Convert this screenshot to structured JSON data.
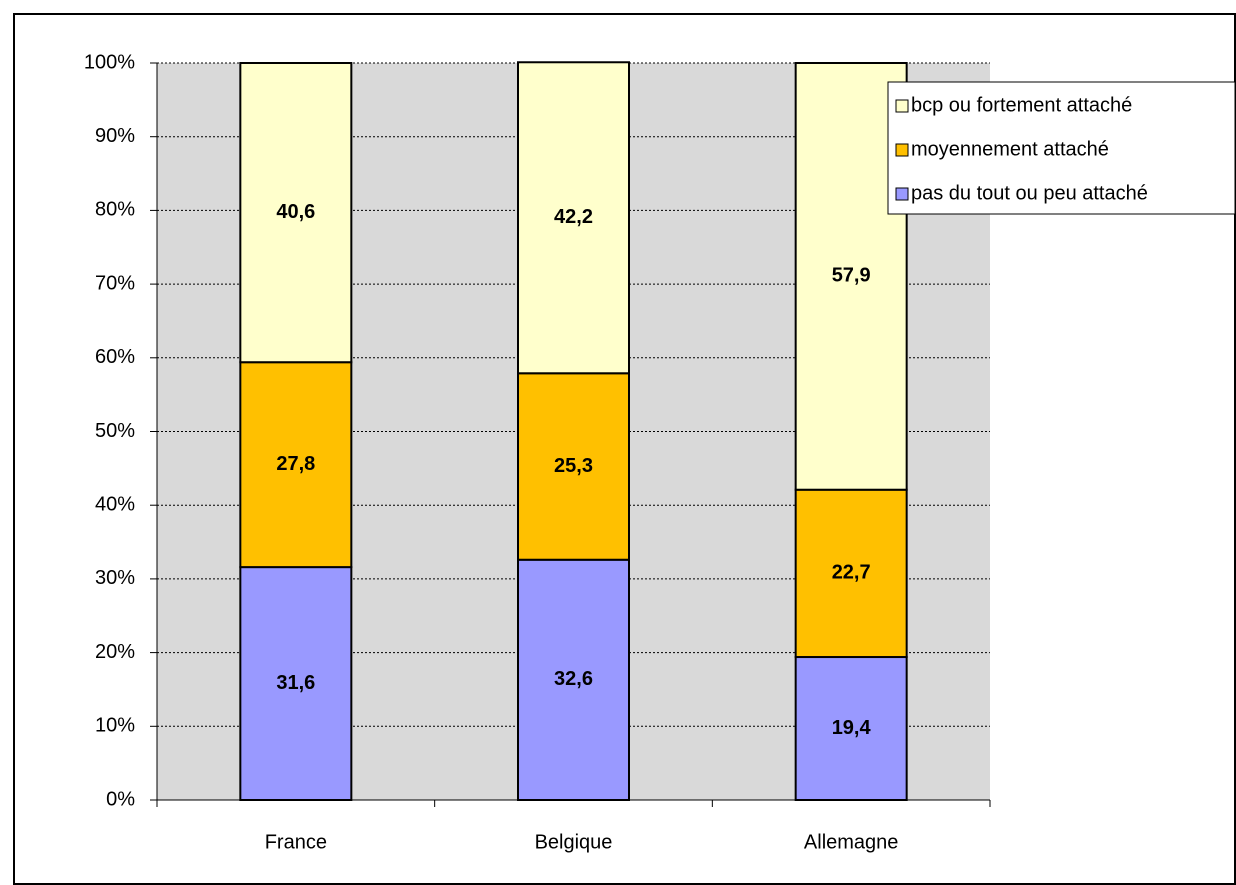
{
  "chart_data": {
    "type": "stacked_bar",
    "categories": [
      "France",
      "Belgique",
      "Allemagne"
    ],
    "series": [
      {
        "name": "pas du tout ou peu attaché",
        "color": "#9999ff",
        "values": [
          31.6,
          32.6,
          19.4
        ],
        "value_labels": [
          "31,6",
          "32,6",
          "19,4"
        ]
      },
      {
        "name": "moyennement attaché",
        "color": "#ffc000",
        "values": [
          27.8,
          25.3,
          22.7
        ],
        "value_labels": [
          "27,8",
          "25,3",
          "22,7"
        ]
      },
      {
        "name": "bcp ou fortement attaché",
        "color": "#ffffcc",
        "values": [
          40.6,
          42.2,
          57.9
        ],
        "value_labels": [
          "40,6",
          "42,2",
          "57,9"
        ]
      }
    ],
    "ylim": [
      0,
      100
    ],
    "yticks": [
      {
        "value": 0,
        "label": "0%"
      },
      {
        "value": 10,
        "label": "10%"
      },
      {
        "value": 20,
        "label": "20%"
      },
      {
        "value": 30,
        "label": "30%"
      },
      {
        "value": 40,
        "label": "40%"
      },
      {
        "value": 50,
        "label": "50%"
      },
      {
        "value": 60,
        "label": "60%"
      },
      {
        "value": 70,
        "label": "70%"
      },
      {
        "value": 80,
        "label": "80%"
      },
      {
        "value": 90,
        "label": "90%"
      },
      {
        "value": 100,
        "label": "100%"
      }
    ],
    "grid": true,
    "legend": "upper right"
  }
}
